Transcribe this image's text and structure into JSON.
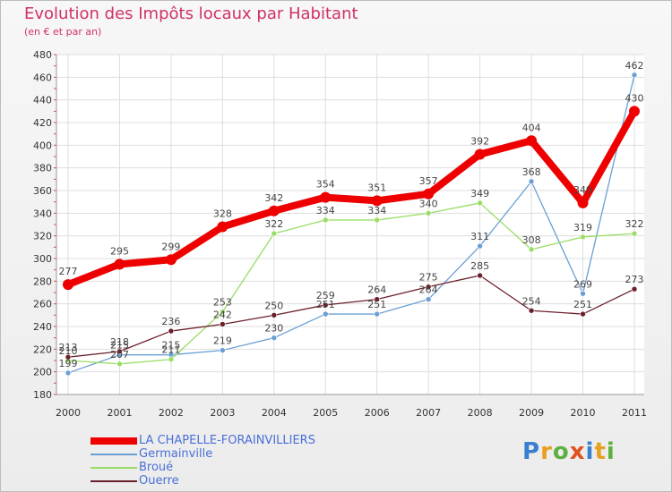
{
  "title": "Evolution des Impôts locaux par Habitant",
  "subtitle": "(en € et par an)",
  "brand": "Proxiti",
  "chart_data": {
    "type": "line",
    "x": [
      "2000",
      "2001",
      "2002",
      "2003",
      "2004",
      "2005",
      "2006",
      "2007",
      "2008",
      "2009",
      "2010",
      "2011"
    ],
    "ylim": [
      180,
      480
    ],
    "yticks": [
      180,
      200,
      220,
      240,
      260,
      280,
      300,
      320,
      340,
      360,
      380,
      400,
      420,
      440,
      460,
      480
    ],
    "grid": true,
    "legend_position": "bottom-left",
    "series": [
      {
        "name": "LA CHAPELLE-FORAINVILLIERS",
        "color": "#ee0000",
        "values": [
          277,
          295,
          299,
          328,
          342,
          354,
          351,
          357,
          392,
          404,
          349,
          430
        ]
      },
      {
        "name": "Germainville",
        "color": "#6a9fd4",
        "values": [
          199,
          215,
          215,
          219,
          230,
          251,
          251,
          264,
          311,
          368,
          269,
          462
        ]
      },
      {
        "name": "Broué",
        "color": "#99dd66",
        "values": [
          210,
          207,
          211,
          253,
          322,
          334,
          334,
          340,
          349,
          308,
          319,
          322
        ]
      },
      {
        "name": "Ouerre",
        "color": "#6b1f2a",
        "values": [
          213,
          218,
          236,
          242,
          250,
          259,
          264,
          275,
          285,
          254,
          251,
          273
        ]
      }
    ]
  }
}
